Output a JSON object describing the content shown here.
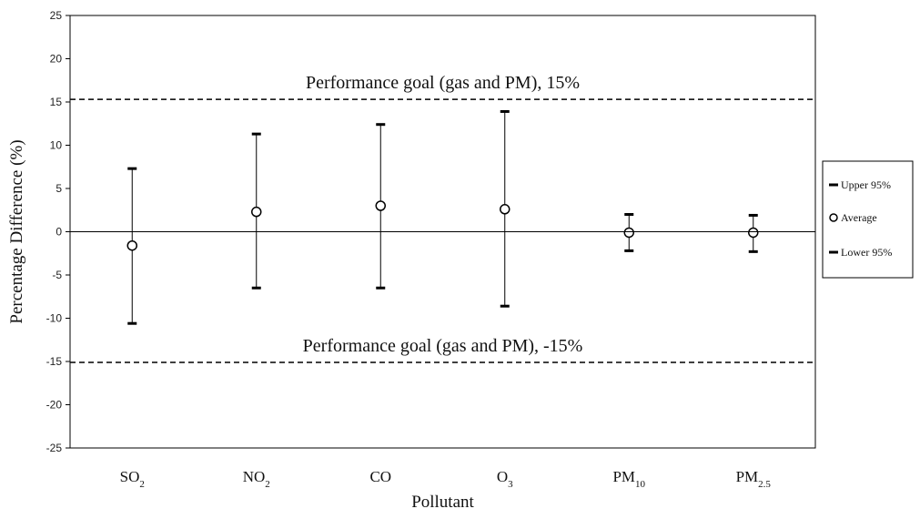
{
  "chart_data": {
    "type": "scatter",
    "subtype": "error-bar",
    "ylabel": "Percentage Difference (%)",
    "xlabel": "Pollutant",
    "ylim": [
      -25,
      25
    ],
    "yticks": [
      -25,
      -20,
      -15,
      -10,
      -5,
      0,
      5,
      10,
      15,
      20,
      25
    ],
    "categories": [
      {
        "label": "SO",
        "sub": "2"
      },
      {
        "label": "NO",
        "sub": "2"
      },
      {
        "label": "CO",
        "sub": ""
      },
      {
        "label": "O",
        "sub": "3"
      },
      {
        "label": "PM",
        "sub": "10"
      },
      {
        "label": "PM",
        "sub": "2.5"
      }
    ],
    "series": [
      {
        "name": "Upper 95%",
        "values": [
          7.3,
          11.3,
          12.4,
          13.9,
          2.0,
          1.9
        ]
      },
      {
        "name": "Average",
        "values": [
          -1.6,
          2.3,
          3.0,
          2.6,
          -0.1,
          -0.1
        ]
      },
      {
        "name": "Lower 95%",
        "values": [
          -10.6,
          -6.5,
          -6.5,
          -8.6,
          -2.2,
          -2.3
        ]
      }
    ],
    "reference_lines": [
      {
        "value": 15.3,
        "label": "Performance goal (gas and PM), 15%"
      },
      {
        "value": -15.1,
        "label": "Performance goal (gas and PM), -15%"
      }
    ],
    "zero_line": true,
    "grid": false,
    "legend_position": "right"
  }
}
